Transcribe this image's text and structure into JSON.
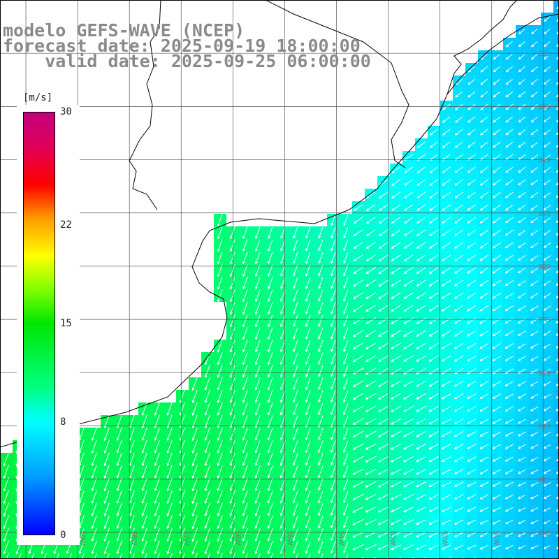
{
  "title": {
    "line1": "modelo GEFS-WAVE (NCEP)",
    "line2": "forecast date: 2025-09-19 18:00:00",
    "line3": "    valid date: 2025-09-25 06:00:00"
  },
  "colorbar": {
    "unit": "[m/s]",
    "ticks": [
      {
        "value": 0,
        "label": "0"
      },
      {
        "value": 8,
        "label": "8"
      },
      {
        "value": 15,
        "label": "15"
      },
      {
        "value": 22,
        "label": "22"
      },
      {
        "value": 30,
        "label": "30"
      }
    ],
    "range": [
      0,
      30
    ]
  },
  "map": {
    "lon_range": [
      -60.5,
      -49.7
    ],
    "lat_range": [
      -31.0,
      -41.5
    ],
    "lat_labels": [
      "32S",
      "33S",
      "34S",
      "35S",
      "36S",
      "37S",
      "38S",
      "39S",
      "40S",
      "41S"
    ],
    "lon_labels": [
      "59W",
      "58W",
      "57W",
      "56W",
      "55W",
      "54W",
      "53W",
      "52W",
      "51W"
    ],
    "grid": true
  },
  "colors": {
    "land": "#ffffff",
    "coast": "#000000",
    "grid": "#555555",
    "arrows": "#ffffff",
    "text": "#8a8a8a"
  }
}
